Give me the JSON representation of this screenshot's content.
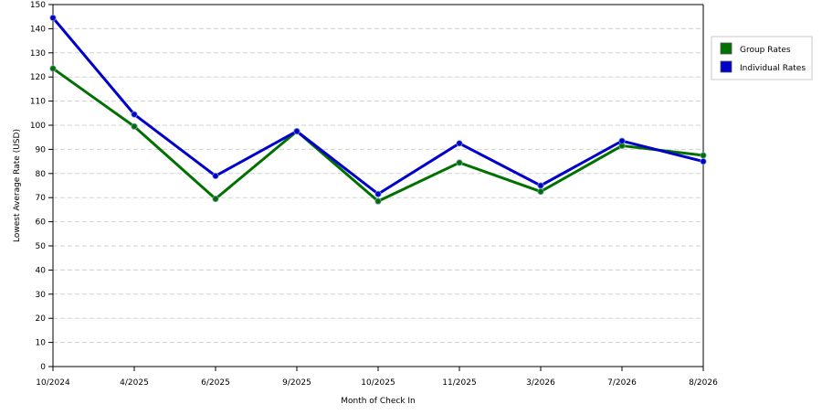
{
  "chart_data": {
    "type": "line",
    "title": "",
    "xlabel": "Month of Check In",
    "ylabel": "Lowest Average Rate (USD)",
    "categories": [
      "10/2024",
      "4/2025",
      "6/2025",
      "9/2025",
      "10/2025",
      "11/2025",
      "3/2026",
      "7/2026",
      "8/2026"
    ],
    "series": [
      {
        "name": "Group Rates",
        "color": "#007100",
        "values": [
          123.5,
          99.5,
          69.5,
          97.5,
          68.5,
          84.5,
          72.5,
          91.5,
          87.5
        ]
      },
      {
        "name": "Individual Rates",
        "color": "#0000cc",
        "values": [
          144.5,
          104.5,
          79.0,
          97.5,
          71.5,
          92.5,
          75.0,
          93.5,
          85.0
        ]
      }
    ],
    "ylim": [
      0,
      150
    ],
    "yticks": [
      0,
      10,
      20,
      30,
      40,
      50,
      60,
      70,
      80,
      90,
      100,
      110,
      120,
      130,
      140,
      150
    ],
    "grid": true,
    "legend_position": "right"
  }
}
